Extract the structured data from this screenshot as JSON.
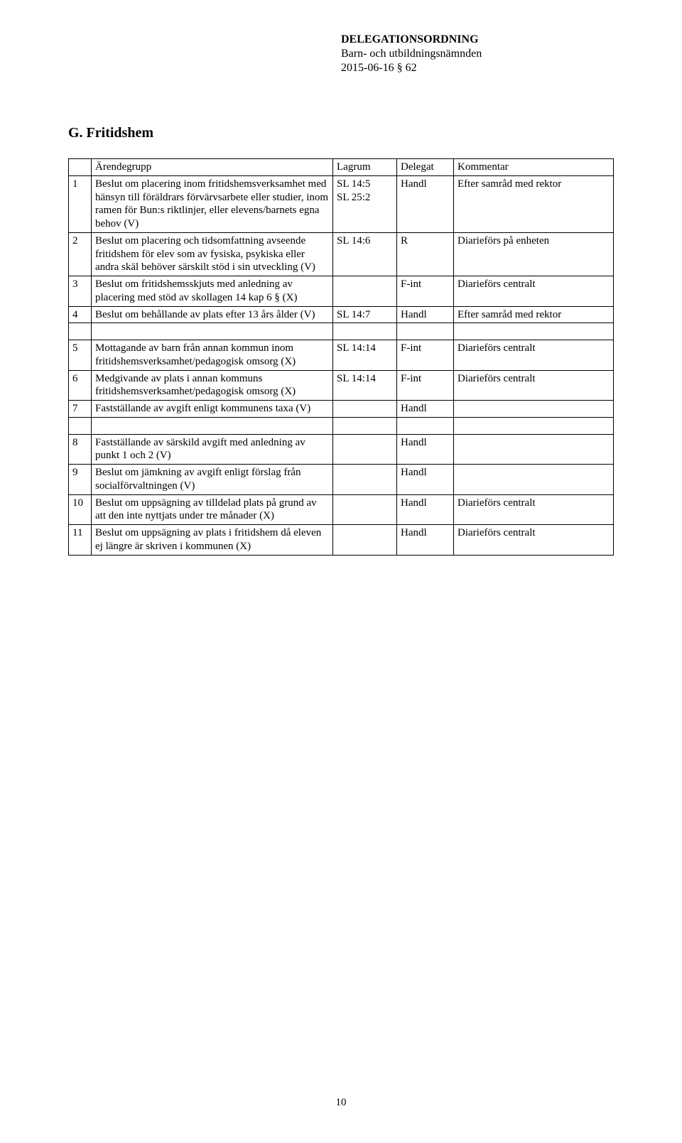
{
  "header": {
    "title": "DELEGATIONSORDNING",
    "subtitle": "Barn- och utbildningsnämnden",
    "date_ref": "2015-06-16 § 62"
  },
  "section_title": "G. Fritidshem",
  "table": {
    "columns": [
      "",
      "Ärendegrupp",
      "Lagrum",
      "Delegat",
      "Kommentar"
    ],
    "rows": [
      {
        "num": "1",
        "desc": "Beslut om placering inom fritidshemsverksamhet med hänsyn till föräldrars förvärvsarbete eller studier, inom ramen för Bun:s riktlinjer, eller elevens/barnets egna behov (V)",
        "lagrum": "SL 14:5\nSL 25:2",
        "delegat": "Handl",
        "kommentar": "Efter samråd med rektor"
      },
      {
        "num": "2",
        "desc": "Beslut om placering och tidsomfattning avseende fritidshem för elev som av fysiska, psykiska eller andra skäl behöver särskilt stöd i sin utveckling (V)",
        "lagrum": "SL 14:6",
        "delegat": "R",
        "kommentar": "Diarieförs på enheten"
      },
      {
        "num": "3",
        "desc": "Beslut om fritidshemsskjuts med anledning av placering med stöd av skollagen 14 kap 6 § (X)",
        "lagrum": "",
        "delegat": "F-int",
        "kommentar": "Diarieförs centralt"
      },
      {
        "num": "4",
        "desc": "Beslut om behållande av plats efter 13 års ålder (V)",
        "lagrum": "SL 14:7",
        "delegat": "Handl",
        "kommentar": "Efter samråd med rektor"
      },
      {
        "spacer": true
      },
      {
        "num": "5",
        "desc": "Mottagande av barn från annan kommun inom fritidshemsverksamhet/pedagogisk omsorg (X)",
        "lagrum": "SL 14:14",
        "delegat": "F-int",
        "kommentar": "Diarieförs centralt"
      },
      {
        "num": "6",
        "desc": "Medgivande av plats i annan kommuns fritidshemsverksamhet/pedagogisk omsorg (X)",
        "lagrum": "SL 14:14",
        "delegat": "F-int",
        "kommentar": "Diarieförs centralt"
      },
      {
        "num": "7",
        "desc": "Fastställande av avgift enligt kommunens taxa (V)",
        "lagrum": "",
        "delegat": "Handl",
        "kommentar": ""
      },
      {
        "spacer": true
      },
      {
        "num": "8",
        "desc": "Fastställande av särskild avgift med anledning av punkt 1 och 2 (V)",
        "lagrum": "",
        "delegat": "Handl",
        "kommentar": ""
      },
      {
        "num": "9",
        "desc": "Beslut om jämkning av avgift enligt förslag från socialförvaltningen (V)",
        "lagrum": "",
        "delegat": "Handl",
        "kommentar": ""
      },
      {
        "num": "10",
        "desc": "Beslut om uppsägning av tilldelad plats på grund av att den inte nyttjats under tre månader (X)",
        "lagrum": "",
        "delegat": "Handl",
        "kommentar": "Diarieförs centralt"
      },
      {
        "num": "11",
        "desc": "Beslut om uppsägning av plats i fritidshem då eleven ej längre är skriven i kommunen (X)",
        "lagrum": "",
        "delegat": "Handl",
        "kommentar": "Diarieförs centralt"
      }
    ]
  },
  "page_number": "10"
}
